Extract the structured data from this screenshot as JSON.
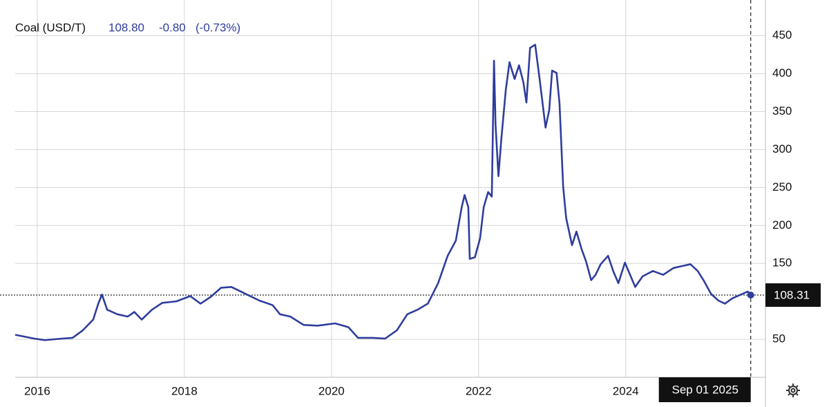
{
  "chart_data": {
    "type": "line",
    "header": {
      "name": "Coal (USD/T)",
      "price": "108.80",
      "change": "-0.80",
      "change_pct": "(-0.73%)"
    },
    "x": [
      2015.7,
      2015.96,
      2016.1,
      2016.34,
      2016.48,
      2016.62,
      2016.76,
      2016.83,
      2016.88,
      2016.95,
      2017.09,
      2017.23,
      2017.32,
      2017.42,
      2017.56,
      2017.7,
      2017.89,
      2018.08,
      2018.22,
      2018.36,
      2018.5,
      2018.64,
      2018.83,
      2019.02,
      2019.2,
      2019.3,
      2019.44,
      2019.62,
      2019.81,
      2020.05,
      2020.23,
      2020.36,
      2020.56,
      2020.73,
      2020.89,
      2021.03,
      2021.17,
      2021.31,
      2021.45,
      2021.58,
      2021.69,
      2021.77,
      2021.81,
      2021.86,
      2021.88,
      2021.95,
      2022.02,
      2022.07,
      2022.13,
      2022.18,
      2022.21,
      2022.23,
      2022.27,
      2022.31,
      2022.37,
      2022.42,
      2022.49,
      2022.55,
      2022.61,
      2022.65,
      2022.7,
      2022.77,
      2022.83,
      2022.91,
      2022.96,
      2023.0,
      2023.06,
      2023.1,
      2023.15,
      2023.19,
      2023.27,
      2023.33,
      2023.4,
      2023.46,
      2023.53,
      2023.59,
      2023.66,
      2023.76,
      2023.83,
      2023.9,
      2023.99,
      2024.06,
      2024.13,
      2024.23,
      2024.37,
      2024.51,
      2024.65,
      2024.79,
      2024.88,
      2024.98,
      2025.07,
      2025.16,
      2025.26,
      2025.35,
      2025.45,
      2025.59,
      2025.66,
      2025.7
    ],
    "series": [
      {
        "name": "Coal",
        "color": "#2e3d9c",
        "values": [
          56,
          51,
          49,
          51,
          52,
          62,
          76,
          97,
          109,
          89,
          83,
          80,
          86,
          76,
          89,
          98,
          100,
          107,
          97,
          106,
          118,
          119,
          110,
          101,
          95,
          83,
          80,
          69,
          68,
          71,
          66,
          52,
          52,
          51,
          62,
          83,
          89,
          97,
          124,
          160,
          180,
          224,
          240,
          224,
          156,
          158,
          183,
          224,
          244,
          238,
          417,
          333,
          265,
          315,
          379,
          415,
          393,
          411,
          388,
          362,
          434,
          438,
          393,
          329,
          352,
          404,
          401,
          361,
          251,
          210,
          174,
          192,
          169,
          153,
          128,
          135,
          149,
          160,
          140,
          124,
          151,
          135,
          119,
          133,
          140,
          135,
          144,
          147,
          149,
          140,
          126,
          110,
          101,
          97,
          104,
          110,
          113,
          108.31
        ]
      }
    ],
    "xlim": [
      2015.7,
      2025.9
    ],
    "ylim": [
      0,
      497
    ],
    "xticks": [
      2016,
      2018,
      2020,
      2022,
      2024
    ],
    "yticks": [
      50,
      150,
      200,
      250,
      300,
      350,
      400,
      450
    ],
    "grid": true,
    "crosshair": {
      "label": "Sep 01 2025",
      "value": 108.31
    }
  }
}
